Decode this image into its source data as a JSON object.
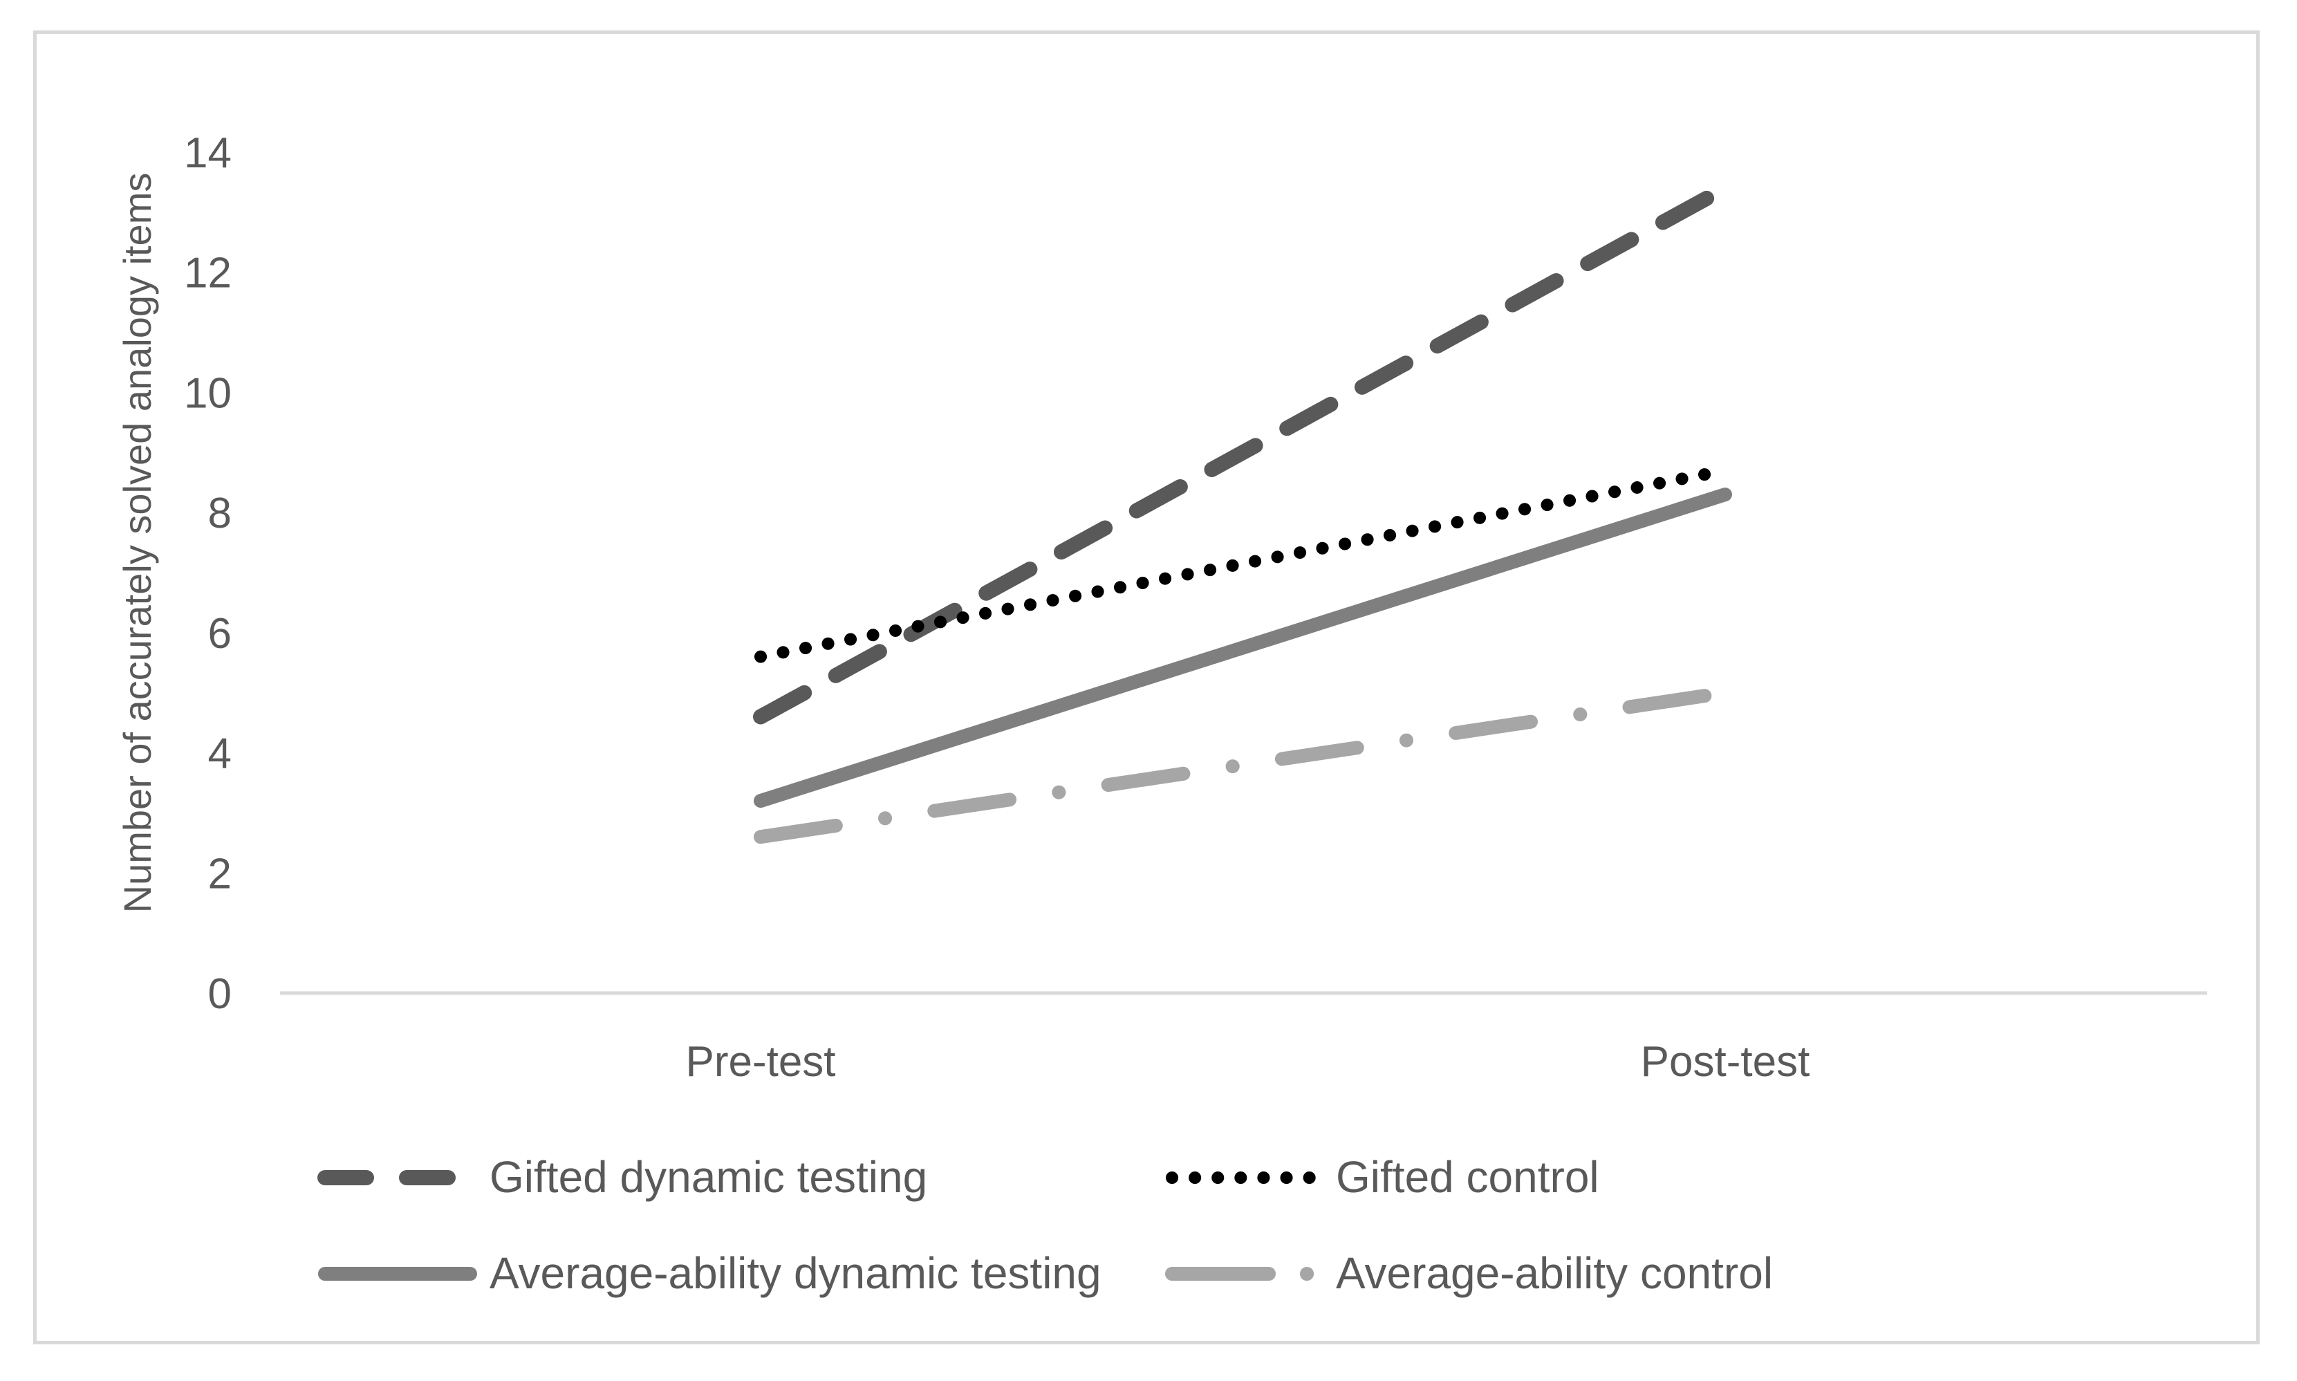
{
  "chart_data": {
    "type": "line",
    "title": "",
    "xlabel": "",
    "ylabel": "Number of accurately solved analogy items",
    "categories": [
      "Pre-test",
      "Post-test"
    ],
    "ylim": [
      0,
      14
    ],
    "yticks": [
      0,
      2,
      4,
      6,
      8,
      10,
      12,
      14
    ],
    "grid": false,
    "legend_position": "bottom",
    "series": [
      {
        "name": "Gifted dynamic testing",
        "values": [
          4.6,
          13.4
        ],
        "color": "#595959",
        "style": "dashed"
      },
      {
        "name": "Gifted control",
        "values": [
          5.6,
          8.7
        ],
        "color": "#000000",
        "style": "dotted"
      },
      {
        "name": "Average-ability dynamic testing",
        "values": [
          3.2,
          8.3
        ],
        "color": "#7f7f7f",
        "style": "solid"
      },
      {
        "name": "Average-ability control",
        "values": [
          2.6,
          5.0
        ],
        "color": "#a6a6a6",
        "style": "long-dash-dot"
      }
    ]
  }
}
